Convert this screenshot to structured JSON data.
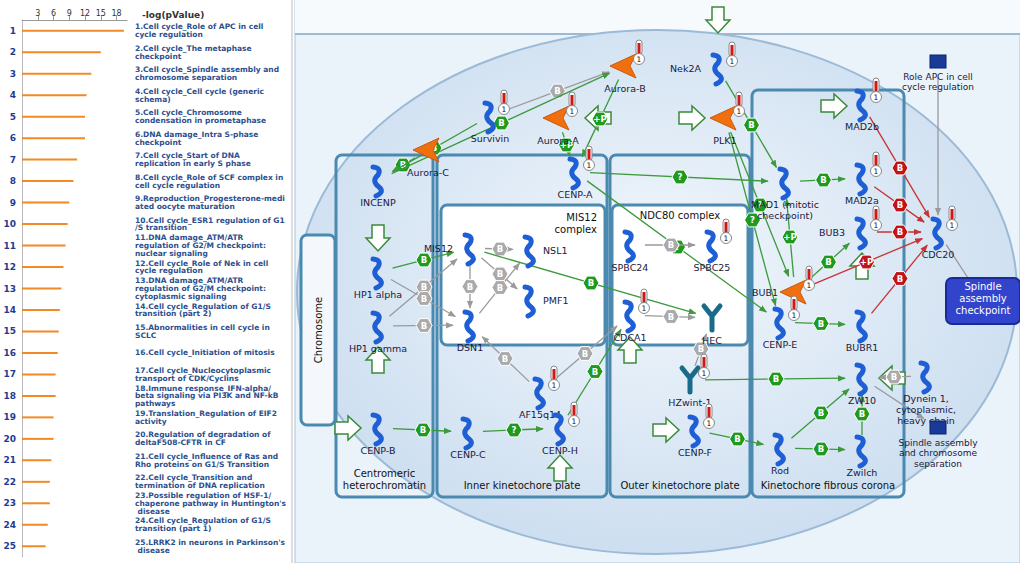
{
  "chart_data": {
    "type": "bar",
    "orientation": "horizontal",
    "xlabel": "-log(pValue)",
    "categories": [
      "1",
      "2",
      "3",
      "4",
      "5",
      "6",
      "7",
      "8",
      "9",
      "10",
      "11",
      "12",
      "13",
      "14",
      "15",
      "16",
      "17",
      "18",
      "19",
      "20",
      "21",
      "22",
      "23",
      "24",
      "25"
    ],
    "values": [
      19.4,
      15,
      13.2,
      12.3,
      12,
      12,
      10.5,
      9.8,
      9,
      8.7,
      8.3,
      7.9,
      7.5,
      7.2,
      7,
      6.8,
      6.4,
      6.4,
      6,
      6,
      5.6,
      5.3,
      5.3,
      4.9,
      4.5
    ],
    "annotations": [
      "1.Cell cycle_Role of APC in cell cycle regulation",
      "2.Cell cycle_The metaphase checkpoint",
      "3.Cell cycle_Spindle assembly and chromosome separation",
      "4.Cell cycle_Cell cycle (generic schema)",
      "5.Cell cycle_Chromosome condensation in prometaphase",
      "6.DNA damage_Intra S-phase checkpoint",
      "7.Cell cycle_Start of DNA replication in early S phase",
      "8.Cell cycle_Role of SCF complex in cell cycle regulation",
      "9.Reproduction_Progesterone-mediated oocyte maturation",
      "10.Cell cycle_ESR1 regulation of G1/S transition",
      "11.DNA damage_ATM/ATR regulation of G2/M checkpoint: nuclear signaling",
      "12.Cell cycle_Role of Nek in cell cycle regulation",
      "13.DNA damage_ATM/ATR regulation of G2/M checkpoint: cytoplasmic signaling",
      "14.Cell cycle_Regulation of G1/S transition (part 2)",
      "15.Abnormalities in cell cycle in SCLC",
      "16.Cell cycle_Initiation of mitosis",
      "17.Cell cycle_Nucleocytoplasmic transport of CDK/Cyclins",
      "18.Immune response_IFN-alpha/beta signaling via PI3K and NF-kB pathways",
      "19.Translation_Regulation of EIF2 activity",
      "20.Regulation of degradation of deltaF508-CFTR in CF",
      "21.Cell cycle_Influence of Ras and Rho proteins on G1/S Transition",
      "22.Cell cycle_Transition and termination of DNA replication",
      "23.Possible regulation of HSF-1/ chaperone pathway in Huntington's disease",
      "24.Cell cycle_Regulation of G1/S transition (part 1)",
      "25.LRRK2 in neurons in Parkinson's disease"
    ],
    "color": "#f08a24",
    "xlim": [
      0,
      20
    ],
    "xticks": [
      3,
      6,
      9,
      12,
      15,
      18
    ],
    "grid": false
  },
  "diagram": {
    "groups": [
      {
        "label": "Centromeric heterochromatin"
      },
      {
        "label": "Inner kinetochore plate"
      },
      {
        "label": "MIS12 complex"
      },
      {
        "label": "Outer kinetochore plate"
      },
      {
        "label": "NDC80 complex"
      },
      {
        "label": "Kinetochore fibrous corona"
      }
    ],
    "nodes": [
      {
        "label": "Aurora-B",
        "type": "kinase",
        "value": 1
      },
      {
        "label": "Nek2A",
        "type": "protein",
        "value": 1
      },
      {
        "label": "Role APC in cell cycle regulation",
        "type": "pathway"
      },
      {
        "label": "Aurora-C",
        "type": "kinase"
      },
      {
        "label": "Survivin",
        "type": "protein",
        "value": 1
      },
      {
        "label": "Aurora-A",
        "type": "kinase",
        "value": 1
      },
      {
        "label": "PLK1",
        "type": "kinase",
        "value": 1
      },
      {
        "label": "MAD2b",
        "type": "protein",
        "value": 1
      },
      {
        "label": "INCENP",
        "type": "protein"
      },
      {
        "label": "CENP-A",
        "type": "protein",
        "value": 1
      },
      {
        "label": "MAD1 (mitotic checkpoint)",
        "type": "protein"
      },
      {
        "label": "MAD2a",
        "type": "protein",
        "value": 1
      },
      {
        "label": "CDC20",
        "type": "protein",
        "value": 1
      },
      {
        "label": "BUB3",
        "type": "protein",
        "value": 1
      },
      {
        "label": "BUB1",
        "type": "kinase",
        "value": 1
      },
      {
        "label": "HP1 alpha",
        "type": "protein"
      },
      {
        "label": "HP1 gamma",
        "type": "protein"
      },
      {
        "label": "MIS12",
        "type": "protein"
      },
      {
        "label": "NSL1",
        "type": "protein"
      },
      {
        "label": "PMF1",
        "type": "protein"
      },
      {
        "label": "DSN1",
        "type": "protein"
      },
      {
        "label": "SPBC24",
        "type": "protein"
      },
      {
        "label": "SPBC25",
        "type": "protein",
        "value": 1
      },
      {
        "label": "CDCA1",
        "type": "protein",
        "value": 1
      },
      {
        "label": "HEC",
        "type": "receptor"
      },
      {
        "label": "CENP-E",
        "type": "protein",
        "value": 1
      },
      {
        "label": "BUBR1",
        "type": "protein"
      },
      {
        "label": "Spindle assembly checkpoint",
        "type": "process"
      },
      {
        "label": "AF15q14",
        "type": "protein",
        "value": 1
      },
      {
        "label": "HZwint-1",
        "type": "receptor",
        "value": 1
      },
      {
        "label": "ZW10",
        "type": "protein"
      },
      {
        "label": "Dynein 1, cytoplasmic, heavy chain",
        "type": "protein"
      },
      {
        "label": "CENP-B",
        "type": "protein"
      },
      {
        "label": "CENP-C",
        "type": "protein"
      },
      {
        "label": "CENP-H",
        "type": "protein",
        "value": 1
      },
      {
        "label": "CENP-F",
        "type": "protein",
        "value": 1
      },
      {
        "label": "Rod",
        "type": "protein"
      },
      {
        "label": "Zwilch",
        "type": "protein"
      },
      {
        "label": "Spindle assembly and chromosome separation",
        "type": "pathway"
      },
      {
        "label": "Chromosome",
        "type": "compartment"
      }
    ],
    "edges": [
      {
        "from": 3,
        "to": 8,
        "label": "B",
        "color": "green"
      },
      {
        "from": 4,
        "to": 8,
        "label": "B",
        "color": "green"
      },
      {
        "from": 4,
        "to": 0,
        "label": "B",
        "color": "gray"
      },
      {
        "from": 8,
        "to": 0,
        "label": "B",
        "color": "green"
      },
      {
        "from": 5,
        "to": 9,
        "label": "+P",
        "color": "green"
      },
      {
        "from": 0,
        "to": 9,
        "label": "+P",
        "color": "green"
      },
      {
        "from": 1,
        "to": 10,
        "label": "B",
        "color": "green"
      },
      {
        "from": 6,
        "to": 25,
        "label": "?",
        "color": "green"
      },
      {
        "from": 6,
        "to": 14,
        "label": "?",
        "color": "green"
      },
      {
        "from": 9,
        "to": 10,
        "label": "?",
        "color": "green"
      },
      {
        "from": 9,
        "to": 25,
        "label": "?",
        "color": "green"
      },
      {
        "from": 10,
        "to": 11,
        "label": "B",
        "color": "green"
      },
      {
        "from": 7,
        "to": 12,
        "label": "B",
        "color": "red"
      },
      {
        "from": 11,
        "to": 12,
        "label": "B",
        "color": "red"
      },
      {
        "from": 13,
        "to": 12,
        "label": "B",
        "color": "red"
      },
      {
        "from": 14,
        "to": 12,
        "label": "+P",
        "color": "red"
      },
      {
        "from": 26,
        "to": 12,
        "label": "B",
        "color": "red"
      },
      {
        "from": 14,
        "to": 13,
        "label": "B",
        "color": "green"
      },
      {
        "from": 14,
        "to": 10,
        "label": "+P",
        "color": "green"
      },
      {
        "from": 25,
        "to": 26,
        "label": "B",
        "color": "green"
      },
      {
        "from": 15,
        "to": 17,
        "label": "B",
        "color": "green"
      },
      {
        "from": 16,
        "to": 17,
        "label": "B",
        "color": "gray"
      },
      {
        "from": 15,
        "to": 20,
        "label": "B",
        "color": "gray"
      },
      {
        "from": 16,
        "to": 20,
        "label": "B",
        "color": "gray"
      },
      {
        "from": 17,
        "to": 18,
        "label": "B",
        "color": "gray"
      },
      {
        "from": 17,
        "to": 19,
        "label": "B",
        "color": "gray"
      },
      {
        "from": 20,
        "to": 18,
        "label": "B",
        "color": "gray"
      },
      {
        "from": 17,
        "to": 20,
        "label": "B",
        "color": "gray"
      },
      {
        "from": 21,
        "to": 22,
        "label": "B",
        "color": "gray"
      },
      {
        "from": 23,
        "to": 24,
        "label": "B",
        "color": "gray"
      },
      {
        "from": 17,
        "to": 24,
        "label": "B",
        "color": "green"
      },
      {
        "from": 28,
        "to": 20,
        "label": "B",
        "color": "gray"
      },
      {
        "from": 28,
        "to": 23,
        "label": "B",
        "color": "gray"
      },
      {
        "from": 34,
        "to": 23,
        "label": "B",
        "color": "green"
      },
      {
        "from": 29,
        "to": 30,
        "label": "B",
        "color": "green"
      },
      {
        "from": 29,
        "to": 24,
        "label": "B",
        "color": "gray"
      },
      {
        "from": 32,
        "to": 33,
        "label": "B",
        "color": "green"
      },
      {
        "from": 33,
        "to": 34,
        "label": "?",
        "color": "green"
      },
      {
        "from": 35,
        "to": 36,
        "label": "B",
        "color": "green"
      },
      {
        "from": 36,
        "to": 37,
        "label": "B",
        "color": "green"
      },
      {
        "from": 36,
        "to": 30,
        "label": "B",
        "color": "green"
      },
      {
        "from": 37,
        "to": 30,
        "label": "B",
        "color": "green"
      },
      {
        "from": 31,
        "to": 30,
        "label": "B",
        "color": "gray"
      },
      {
        "from": 12,
        "to": 27,
        "color": "gray"
      },
      {
        "from": 2,
        "to": 12,
        "color": "gray"
      },
      {
        "from": 30,
        "to": 38,
        "color": "gray"
      }
    ]
  }
}
